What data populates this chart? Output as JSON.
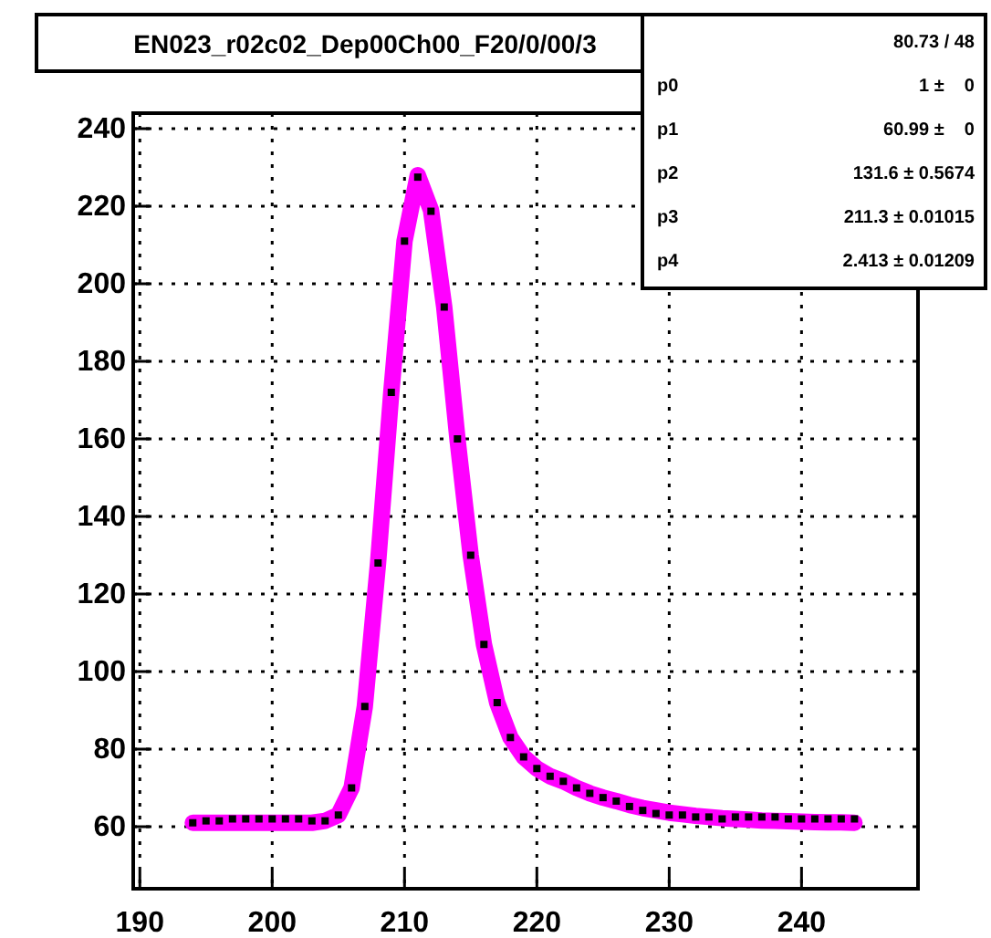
{
  "chart_data": {
    "type": "scatter",
    "title": "EN023_r02c02_Dep00Ch00_F20/0/00/3",
    "x": [
      194,
      195,
      196,
      197,
      198,
      199,
      200,
      201,
      202,
      203,
      204,
      205,
      206,
      207,
      208,
      209,
      210,
      211,
      212,
      213,
      214,
      215,
      216,
      217,
      218,
      219,
      220,
      221,
      222,
      223,
      224,
      225,
      226,
      227,
      228,
      229,
      230,
      231,
      232,
      233,
      234,
      235,
      236,
      237,
      238,
      239,
      240,
      241,
      242,
      243,
      244
    ],
    "series": [
      {
        "type": "line",
        "color": "#ff00ff",
        "marker": "none",
        "values": [
          61,
          61,
          61,
          61,
          61,
          61,
          61,
          61,
          61,
          61,
          61.5,
          63,
          70,
          91,
          128,
          172,
          211,
          228,
          219,
          194,
          160,
          130,
          107,
          92,
          83,
          78,
          75,
          73,
          71.7,
          70,
          68.6,
          67.5,
          66.6,
          65.6,
          64.8,
          64.2,
          63.6,
          63.2,
          62.8,
          62.5,
          62.2,
          62,
          61.8,
          61.6,
          61.5,
          61.4,
          61.3,
          61.2,
          61.1,
          61.1,
          61
        ]
      },
      {
        "color": "#000000",
        "marker": "square",
        "values": [
          61,
          61.5,
          61.5,
          62,
          62,
          62,
          62,
          62,
          62,
          61.5,
          61.5,
          63,
          70,
          91,
          128,
          172,
          211,
          227.5,
          218.7,
          194,
          160,
          130,
          107,
          92,
          83,
          78,
          75,
          73,
          71.7,
          70,
          68.6,
          67.5,
          66.6,
          65.2,
          64.2,
          63.4,
          63,
          63,
          62.5,
          62.5,
          62,
          62.5,
          62.5,
          62.5,
          62.5,
          62,
          62,
          62,
          62,
          62,
          62
        ]
      }
    ],
    "xlim": [
      189.5,
      248.8
    ],
    "xticks": [
      190,
      200,
      210,
      220,
      230,
      240
    ],
    "ylim": [
      44,
      244
    ],
    "yticks": [
      60,
      80,
      100,
      120,
      140,
      160,
      180,
      200,
      220,
      240
    ],
    "grid": true,
    "annotations": [
      "80.73 / 48",
      "p0 1 ±    0",
      "p1 60.99 ±    0",
      "p2 131.6 ± 0.5674",
      "p3 211.3 ± 0.01015",
      "p4 2.413 ± 0.01209"
    ]
  }
}
